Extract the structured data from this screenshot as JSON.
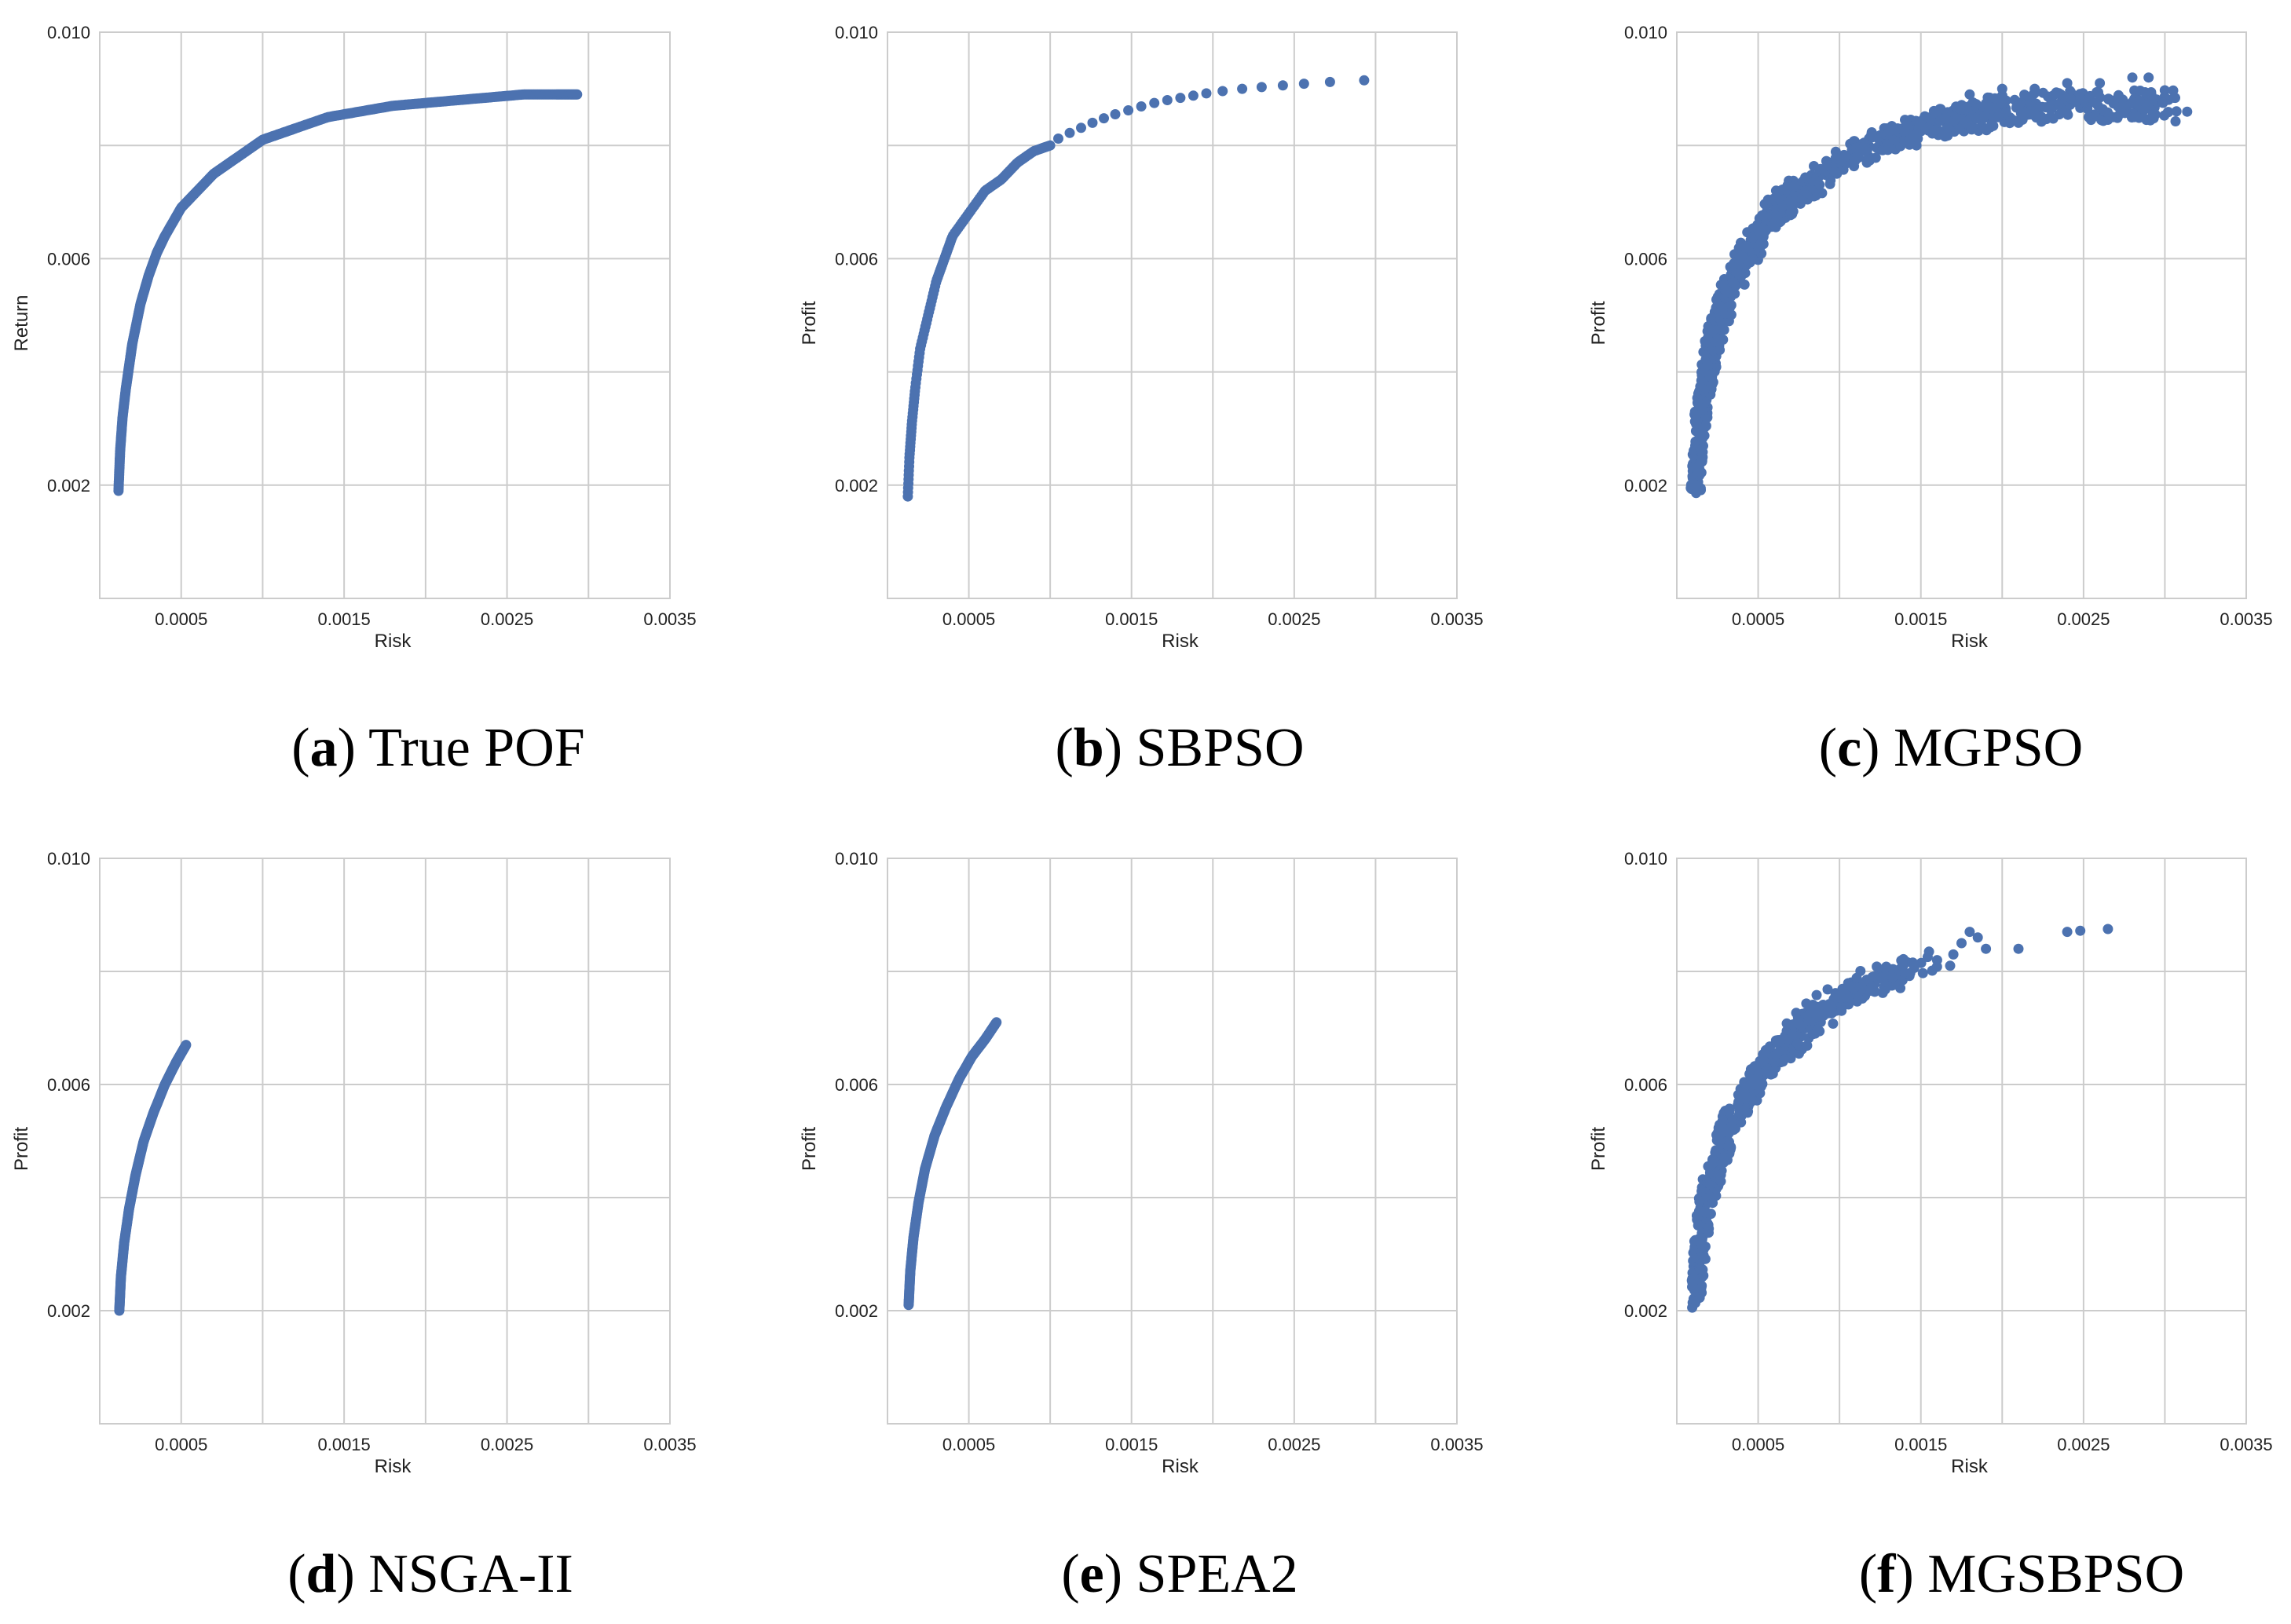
{
  "chart_data": [
    {
      "id": "a",
      "type": "scatter",
      "panel_label": "a",
      "caption": "True POF",
      "xlabel": "Risk",
      "ylabel": "Return",
      "xlim": [
        0.0,
        0.0035
      ],
      "ylim": [
        0.0,
        0.01
      ],
      "xticks": [
        "0.0005",
        "0.0015",
        "0.0025",
        "0.0035"
      ],
      "yticks": [
        "0.002",
        "0.006",
        "0.010"
      ],
      "grid": true,
      "marker_color": "#4c72b0",
      "front": {
        "x": [
          0.000115,
          0.000125,
          0.00014,
          0.00016,
          0.00018,
          0.0002,
          0.00025,
          0.0003,
          0.00035,
          0.0004,
          0.0005,
          0.0006,
          0.0007,
          0.0008,
          0.0009,
          0.001,
          0.0011,
          0.0012,
          0.0014,
          0.0016,
          0.0018,
          0.002,
          0.0022,
          0.0024,
          0.0026,
          0.0028,
          0.00293
        ],
        "y": [
          0.0019,
          0.0026,
          0.0032,
          0.0037,
          0.0041,
          0.0045,
          0.0052,
          0.0057,
          0.0061,
          0.0064,
          0.0069,
          0.0072,
          0.0075,
          0.0077,
          0.0079,
          0.0081,
          0.0082,
          0.0083,
          0.0085,
          0.0086,
          0.0087,
          0.00875,
          0.0088,
          0.00885,
          0.0089,
          0.0089,
          0.0089
        ]
      },
      "density": 450,
      "spread": 0.0,
      "outliers": []
    },
    {
      "id": "b",
      "type": "scatter",
      "panel_label": "b",
      "caption": "SBPSO",
      "xlabel": "Risk",
      "ylabel": "Profit",
      "xlim": [
        0.0,
        0.0035
      ],
      "ylim": [
        0.0,
        0.01
      ],
      "xticks": [
        "0.0005",
        "0.0015",
        "0.0025",
        "0.0035"
      ],
      "yticks": [
        "0.002",
        "0.006",
        "0.010"
      ],
      "grid": true,
      "marker_color": "#4c72b0",
      "front": {
        "x": [
          0.000125,
          0.000135,
          0.00015,
          0.00017,
          0.0002,
          0.00025,
          0.0003,
          0.00035,
          0.0004,
          0.0005,
          0.0006,
          0.0007,
          0.0008,
          0.0009,
          0.001
        ],
        "y": [
          0.0018,
          0.0025,
          0.0031,
          0.0037,
          0.0044,
          0.005,
          0.0056,
          0.006,
          0.0064,
          0.0068,
          0.0072,
          0.0074,
          0.0077,
          0.0079,
          0.008
        ]
      },
      "density": 130,
      "spread": 0.0,
      "outliers": [
        [
          0.00105,
          0.00812
        ],
        [
          0.00112,
          0.00822
        ],
        [
          0.00119,
          0.00831
        ],
        [
          0.00126,
          0.0084
        ],
        [
          0.00133,
          0.00848
        ],
        [
          0.0014,
          0.00855
        ],
        [
          0.00148,
          0.00862
        ],
        [
          0.00156,
          0.00869
        ],
        [
          0.00164,
          0.00875
        ],
        [
          0.00172,
          0.0088
        ],
        [
          0.0018,
          0.00884
        ],
        [
          0.00188,
          0.00888
        ],
        [
          0.00196,
          0.00892
        ],
        [
          0.00206,
          0.00896
        ],
        [
          0.00218,
          0.009
        ],
        [
          0.0023,
          0.00903
        ],
        [
          0.00243,
          0.00906
        ],
        [
          0.00256,
          0.00909
        ],
        [
          0.00272,
          0.00912
        ],
        [
          0.00293,
          0.00915
        ]
      ]
    },
    {
      "id": "c",
      "type": "scatter",
      "panel_label": "c",
      "caption": "MGPSO",
      "xlabel": "Risk",
      "ylabel": "Profit",
      "xlim": [
        0.0,
        0.0035
      ],
      "ylim": [
        0.0,
        0.01
      ],
      "xticks": [
        "0.0005",
        "0.0015",
        "0.0025",
        "0.0035"
      ],
      "yticks": [
        "0.002",
        "0.006",
        "0.010"
      ],
      "grid": true,
      "marker_color": "#4c72b0",
      "front": {
        "x": [
          0.000115,
          0.00013,
          0.00015,
          0.00018,
          0.0002,
          0.00025,
          0.0003,
          0.0004,
          0.0005,
          0.0006,
          0.0007,
          0.0008,
          0.001,
          0.0012,
          0.0014,
          0.0016,
          0.0018,
          0.002,
          0.0022,
          0.0025,
          0.0028,
          0.00305
        ],
        "y": [
          0.0019,
          0.0026,
          0.0033,
          0.0038,
          0.0042,
          0.0048,
          0.0053,
          0.0059,
          0.0064,
          0.0068,
          0.0071,
          0.0073,
          0.0077,
          0.008,
          0.0082,
          0.0084,
          0.0085,
          0.0086,
          0.0087,
          0.0087,
          0.0087,
          0.0087
        ]
      },
      "density": 900,
      "spread": 0.00035,
      "outliers": [
        [
          0.0018,
          0.0089
        ],
        [
          0.002,
          0.009
        ],
        [
          0.0022,
          0.009
        ],
        [
          0.0024,
          0.0091
        ],
        [
          0.0026,
          0.0091
        ],
        [
          0.0028,
          0.0092
        ],
        [
          0.0029,
          0.0092
        ],
        [
          0.0021,
          0.0084
        ],
        [
          0.0023,
          0.0085
        ],
        [
          0.0019,
          0.0083
        ]
      ]
    },
    {
      "id": "d",
      "type": "scatter",
      "panel_label": "d",
      "caption": "NSGA-II",
      "xlabel": "Risk",
      "ylabel": "Profit",
      "xlim": [
        0.0,
        0.0035
      ],
      "ylim": [
        0.0,
        0.01
      ],
      "xticks": [
        "0.0005",
        "0.0015",
        "0.0025",
        "0.0035"
      ],
      "yticks": [
        "0.002",
        "0.006",
        "0.010"
      ],
      "grid": true,
      "marker_color": "#4c72b0",
      "front": {
        "x": [
          0.00012,
          0.00013,
          0.00015,
          0.00018,
          0.00022,
          0.00027,
          0.00033,
          0.0004,
          0.00047,
          0.00053
        ],
        "y": [
          0.002,
          0.0026,
          0.0032,
          0.0038,
          0.0044,
          0.005,
          0.0055,
          0.006,
          0.0064,
          0.0067
        ]
      },
      "density": 260,
      "spread": 0.0,
      "outliers": []
    },
    {
      "id": "e",
      "type": "scatter",
      "panel_label": "e",
      "caption": "SPEA2",
      "xlabel": "Risk",
      "ylabel": "Profit",
      "xlim": [
        0.0,
        0.0035
      ],
      "ylim": [
        0.0,
        0.01
      ],
      "xticks": [
        "0.0005",
        "0.0015",
        "0.0025",
        "0.0035"
      ],
      "yticks": [
        "0.002",
        "0.006",
        "0.010"
      ],
      "grid": true,
      "marker_color": "#4c72b0",
      "front": {
        "x": [
          0.00013,
          0.00014,
          0.00016,
          0.00019,
          0.00023,
          0.00029,
          0.00036,
          0.00044,
          0.00052,
          0.0006,
          0.00067
        ],
        "y": [
          0.0021,
          0.0027,
          0.0033,
          0.0039,
          0.0045,
          0.0051,
          0.0056,
          0.0061,
          0.0065,
          0.0068,
          0.0071
        ]
      },
      "density": 280,
      "spread": 0.0,
      "outliers": []
    },
    {
      "id": "f",
      "type": "scatter",
      "panel_label": "f",
      "caption": "MGSBPSO",
      "xlabel": "Risk",
      "ylabel": "Profit",
      "xlim": [
        0.0,
        0.0035
      ],
      "ylim": [
        0.0,
        0.01
      ],
      "xticks": [
        "0.0005",
        "0.0015",
        "0.0025",
        "0.0035"
      ],
      "yticks": [
        "0.002",
        "0.006",
        "0.010"
      ],
      "grid": true,
      "marker_color": "#4c72b0",
      "front": {
        "x": [
          0.000115,
          0.00013,
          0.00015,
          0.00018,
          0.00022,
          0.00028,
          0.00035,
          0.00045,
          0.00055,
          0.00065,
          0.00075,
          0.00085,
          0.00095,
          0.0011,
          0.0013,
          0.0015
        ],
        "y": [
          0.0021,
          0.0027,
          0.0033,
          0.0039,
          0.0044,
          0.0049,
          0.0054,
          0.0059,
          0.0063,
          0.0066,
          0.0069,
          0.0072,
          0.0074,
          0.0077,
          0.0079,
          0.0081
        ]
      },
      "density": 520,
      "spread": 0.00025,
      "outliers": [
        [
          0.0016,
          0.0082
        ],
        [
          0.0017,
          0.0083
        ],
        [
          0.00175,
          0.0085
        ],
        [
          0.0018,
          0.0087
        ],
        [
          0.00185,
          0.0086
        ],
        [
          0.0019,
          0.0084
        ],
        [
          0.0021,
          0.0084
        ],
        [
          0.0024,
          0.0087
        ],
        [
          0.00248,
          0.00872
        ],
        [
          0.00265,
          0.00875
        ],
        [
          0.00155,
          0.00835
        ],
        [
          0.00168,
          0.0081
        ]
      ]
    }
  ]
}
